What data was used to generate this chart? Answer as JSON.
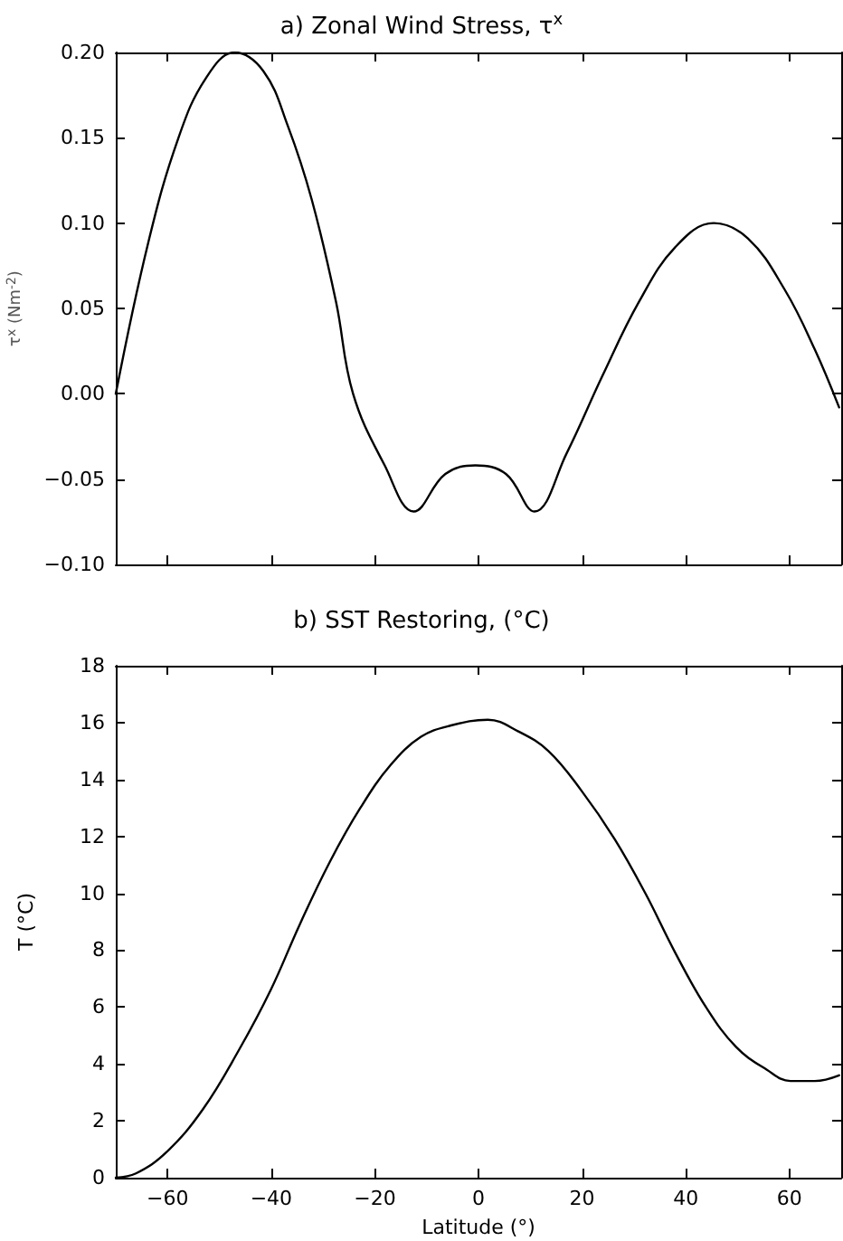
{
  "chart_data": [
    {
      "type": "line",
      "title": "a) Zonal Wind Stress, τ$^{x}$",
      "ylabel": "τ$^{x}$ (Nm$^{-2}$)",
      "x": [
        -70,
        -63.7,
        -57.9,
        -52.6,
        -47.1,
        -41.5,
        -36.8,
        -32.2,
        -27.5,
        -24.2,
        -18.1,
        -12.5,
        -6.4,
        -0.6,
        5.3,
        10.8,
        17,
        24,
        31,
        38,
        45.4,
        52,
        59.1,
        64.9,
        69.6
      ],
      "series": [
        {
          "color": "#000000",
          "values": [
            0,
            0.089,
            0.15,
            0.185,
            0.2,
            0.189,
            0.157,
            0.114,
            0.054,
            0,
            -0.042,
            -0.069,
            -0.047,
            -0.042,
            -0.047,
            -0.069,
            -0.035,
            0.011,
            0.054,
            0.086,
            0.1,
            0.091,
            0.061,
            0.026,
            -0.008
          ]
        }
      ],
      "xlim": [
        -70,
        70
      ],
      "xticks": [
        {
          "value": -60,
          "label": null
        },
        {
          "value": -40,
          "label": null
        },
        {
          "value": -20,
          "label": null
        },
        {
          "value": 0,
          "label": null
        },
        {
          "value": 20,
          "label": null
        },
        {
          "value": 40,
          "label": null
        },
        {
          "value": 60,
          "label": null
        }
      ],
      "ylim": [
        -0.1,
        0.2
      ],
      "yticks": [
        {
          "value": -0.1,
          "label": "−0.10"
        },
        {
          "value": -0.05,
          "label": "−0.05"
        },
        {
          "value": 0,
          "label": "0.00"
        },
        {
          "value": 0.05,
          "label": "0.05"
        },
        {
          "value": 0.1,
          "label": "0.10"
        },
        {
          "value": 0.15,
          "label": "0.15"
        },
        {
          "value": 0.2,
          "label": "0.20"
        }
      ],
      "tick_labels": "y",
      "grid": false,
      "marker": "none",
      "line_style": "solid"
    },
    {
      "type": "line",
      "title": "b) SST Restoring, (°C)",
      "xlabel": "Latitude (°)",
      "ylabel": "T (°C)",
      "x": [
        -70,
        -66.1,
        -60.2,
        -53.2,
        -46.2,
        -40.1,
        -34.5,
        -28.7,
        -22.8,
        -17,
        -11.1,
        -5.3,
        1.8,
        7.6,
        13.5,
        19.9,
        26.3,
        32.2,
        38,
        43.9,
        49.7,
        55.6,
        60.2,
        64.9,
        69.6
      ],
      "series": [
        {
          "color": "#000000",
          "values": [
            0,
            0.15,
            0.9,
            2.4,
            4.5,
            6.6,
            8.9,
            11.1,
            13,
            14.5,
            15.5,
            15.9,
            16.1,
            15.7,
            15,
            13.6,
            11.9,
            10,
            7.9,
            6,
            4.6,
            3.8,
            3.4,
            3.4,
            3.6
          ]
        }
      ],
      "xlim": [
        -70,
        70
      ],
      "xticks": [
        {
          "value": -60,
          "label": "−60"
        },
        {
          "value": -40,
          "label": "−40"
        },
        {
          "value": -20,
          "label": "−20"
        },
        0,
        20,
        40,
        60
      ],
      "ylim": [
        0,
        18
      ],
      "yticks": [
        0,
        2,
        4,
        6,
        8,
        10,
        12,
        14,
        16,
        18
      ],
      "grid": false,
      "marker": "none",
      "line_style": "solid"
    }
  ]
}
